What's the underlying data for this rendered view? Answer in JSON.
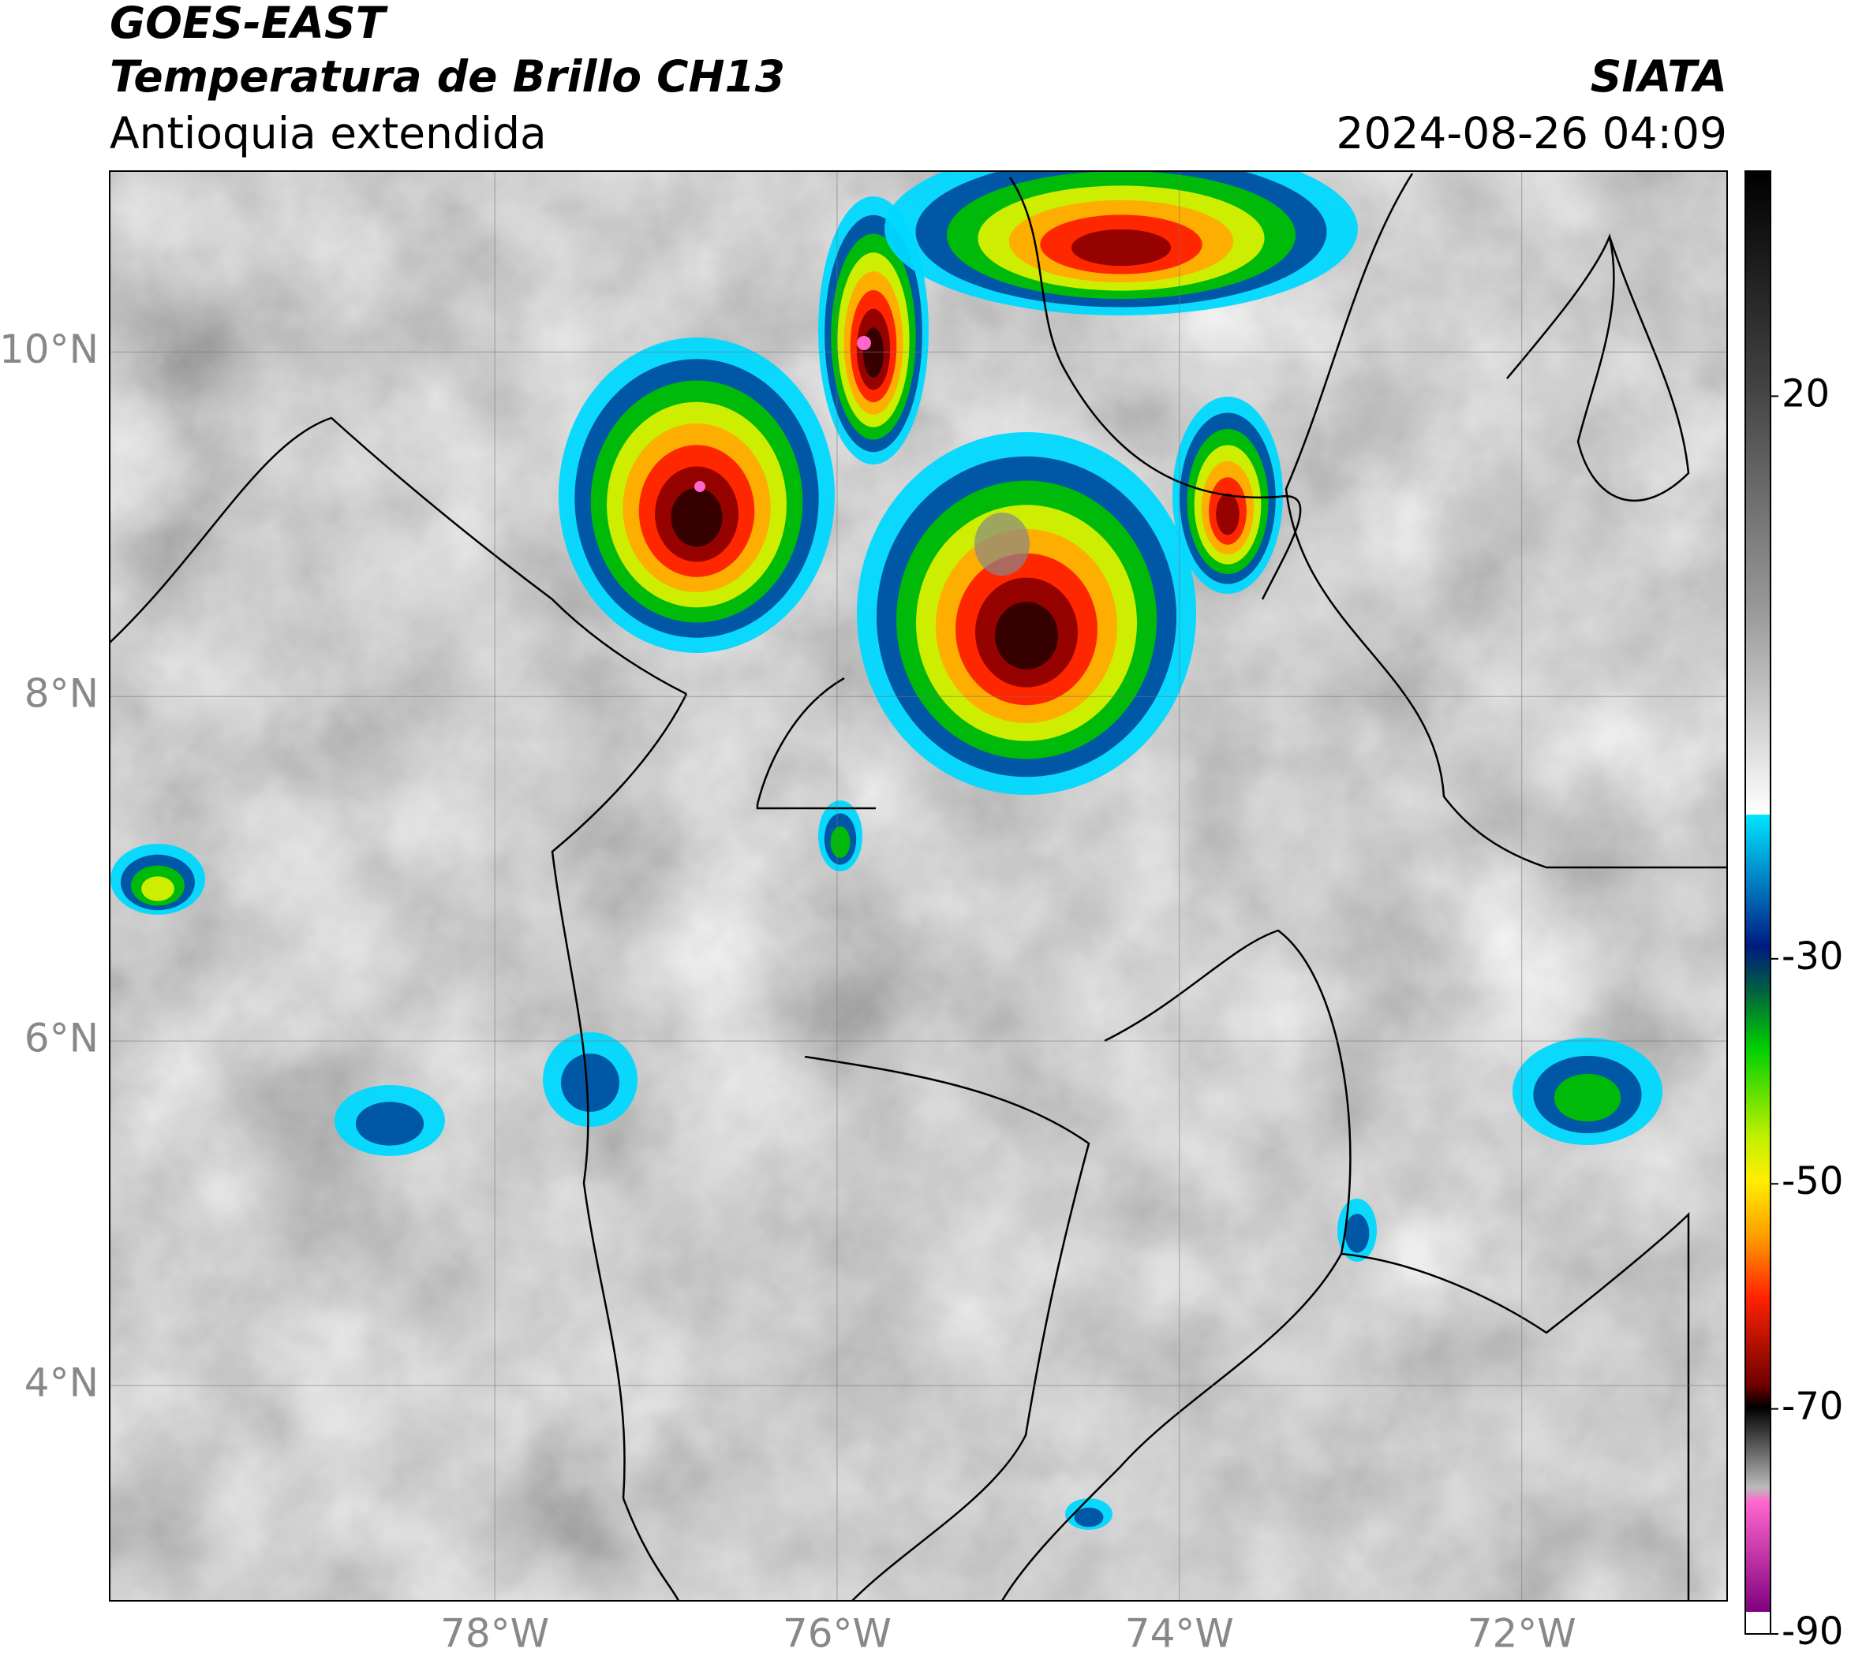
{
  "header": {
    "title": "GOES-EAST",
    "subtitle": "Temperatura de Brillo CH13",
    "region": "Antioquia extendida",
    "source": "SIATA",
    "timestamp": "2024-08-26 04:09"
  },
  "chart_data": {
    "type": "map",
    "xlim": [
      -80.25,
      -70.8
    ],
    "ylim": [
      2.75,
      11.05
    ],
    "xticks": [
      {
        "value": -78,
        "label": "78°W"
      },
      {
        "value": -76,
        "label": "76°W"
      },
      {
        "value": -74,
        "label": "74°W"
      },
      {
        "value": -72,
        "label": "72°W"
      }
    ],
    "yticks": [
      {
        "value": 4,
        "label": "4°N"
      },
      {
        "value": 6,
        "label": "6°N"
      },
      {
        "value": 8,
        "label": "8°N"
      },
      {
        "value": 10,
        "label": "10°N"
      }
    ],
    "grid": true,
    "colorbar": {
      "lim": [
        -90,
        40
      ],
      "ticks": [
        20,
        -30,
        -50,
        -70,
        -90
      ]
    }
  }
}
